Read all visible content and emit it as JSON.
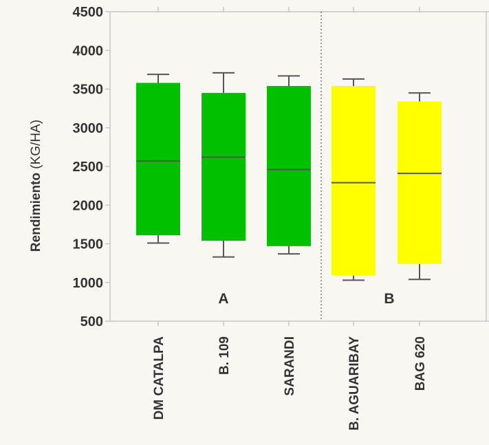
{
  "chart_data": {
    "type": "box",
    "ylabel_bold": "Rendimiento",
    "ylabel_rest": " (KG/HA)",
    "ylim": [
      500,
      4500
    ],
    "yticks": [
      500,
      1000,
      1500,
      2000,
      2500,
      3000,
      3500,
      4000,
      4500
    ],
    "grid": false,
    "categories": [
      "DM CATALPA",
      "B. 109",
      "SARANDI",
      "B. AGUARIBAY",
      "BAG 620"
    ],
    "boxes": [
      {
        "name": "DM CATALPA",
        "whisker_low": 1510,
        "q1": 1610,
        "median": 2570,
        "q3": 3580,
        "whisker_high": 3690,
        "group": "A",
        "color": "#00c000"
      },
      {
        "name": "B. 109",
        "whisker_low": 1330,
        "q1": 1540,
        "median": 2620,
        "q3": 3450,
        "whisker_high": 3710,
        "group": "A",
        "color": "#00c000"
      },
      {
        "name": "SARANDI",
        "whisker_low": 1370,
        "q1": 1470,
        "median": 2460,
        "q3": 3540,
        "whisker_high": 3670,
        "group": "A",
        "color": "#00c000"
      },
      {
        "name": "B. AGUARIBAY",
        "whisker_low": 1030,
        "q1": 1090,
        "median": 2290,
        "q3": 3540,
        "whisker_high": 3630,
        "group": "B",
        "color": "#ffff00"
      },
      {
        "name": "BAG 620",
        "whisker_low": 1040,
        "q1": 1240,
        "median": 2410,
        "q3": 3340,
        "whisker_high": 3450,
        "group": "B",
        "color": "#ffff00"
      }
    ],
    "groups": [
      {
        "label": "A"
      },
      {
        "label": "B"
      }
    ]
  }
}
